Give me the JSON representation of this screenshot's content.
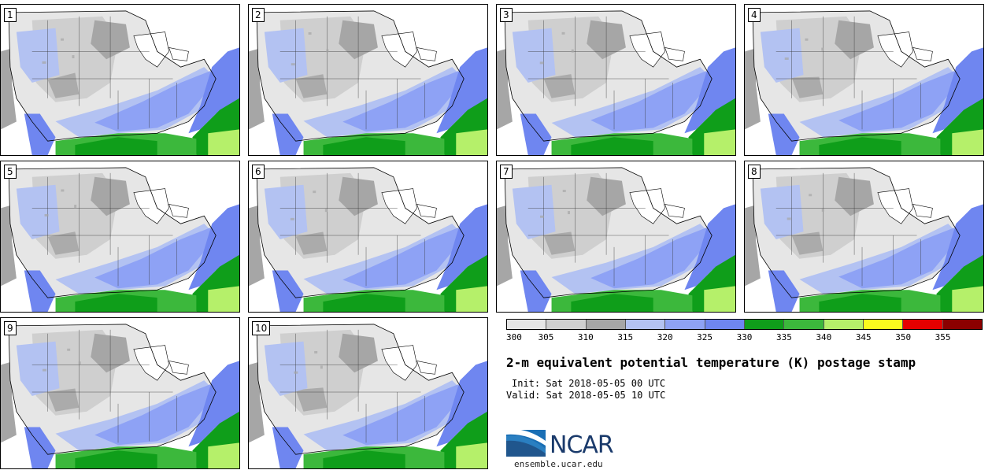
{
  "panels": [
    {
      "label": "1"
    },
    {
      "label": "2"
    },
    {
      "label": "3"
    },
    {
      "label": "4"
    },
    {
      "label": "5"
    },
    {
      "label": "6"
    },
    {
      "label": "7"
    },
    {
      "label": "8"
    },
    {
      "label": "9"
    },
    {
      "label": "10"
    }
  ],
  "colorbar": {
    "colors": [
      "#e6e6e6",
      "#cfcfcf",
      "#a6a6a6",
      "#b3c2f2",
      "#8ea2f5",
      "#6f86f0",
      "#0f9e1a",
      "#3cb83c",
      "#b5f06a",
      "#fafa1e",
      "#e60000",
      "#8b0000"
    ],
    "ticks": [
      "300",
      "305",
      "310",
      "315",
      "320",
      "325",
      "330",
      "335",
      "340",
      "345",
      "350",
      "355"
    ]
  },
  "title": "2-m equivalent potential temperature (K) postage stamp",
  "init": "Init: Sat 2018-05-05 00 UTC",
  "valid": "Valid: Sat 2018-05-05 10 UTC",
  "logo": {
    "text": "NCAR",
    "url": "ensemble.ucar.edu",
    "colors": {
      "navy": "#1a3a6b",
      "blue": "#2a7fc1"
    }
  },
  "map_colors": {
    "ocean_gray": "#a6a6a6",
    "land_light": "#e6e6e6",
    "land_mid": "#cfcfcf",
    "land_dark": "#a6a6a6",
    "pale_blue": "#b3c2f2",
    "mid_blue": "#8ea2f5",
    "deep_blue": "#6f86f0",
    "dark_green": "#0f9e1a",
    "green": "#3cb83c",
    "light_green": "#b5f06a"
  }
}
